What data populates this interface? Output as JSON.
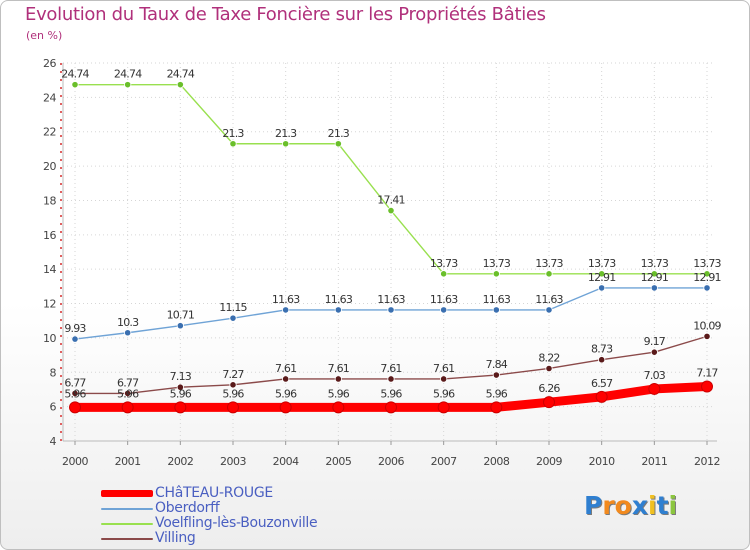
{
  "chart_data": {
    "type": "line",
    "title": "Evolution du Taux de Taxe Foncière sur les Propriétés Bâties",
    "ylabel": "(en %)",
    "xlabel": "",
    "x": [
      "2000",
      "2001",
      "2002",
      "2003",
      "2004",
      "2005",
      "2006",
      "2007",
      "2008",
      "2009",
      "2010",
      "2011",
      "2012"
    ],
    "ylim": [
      4,
      26
    ],
    "yticks": [
      4,
      6,
      8,
      10,
      12,
      14,
      16,
      18,
      20,
      22,
      24,
      26
    ],
    "grid": true,
    "series": [
      {
        "name": "CHâTEAU-ROUGE",
        "color": "#ff0000",
        "marker_color": "#ff0000",
        "values": [
          5.96,
          5.96,
          5.96,
          5.96,
          5.96,
          5.96,
          5.96,
          5.96,
          5.96,
          6.26,
          6.57,
          7.03,
          7.17
        ],
        "labels": [
          "5.96",
          "5.96",
          "5.96",
          "5.96",
          "5.96",
          "5.96",
          "5.96",
          "5.96",
          "5.96",
          "6.26",
          "6.57",
          "7.03",
          "7.17"
        ]
      },
      {
        "name": "Oberdorff",
        "color": "#6fa3d6",
        "marker_color": "#3a6fb0",
        "values": [
          9.93,
          10.3,
          10.71,
          11.15,
          11.63,
          11.63,
          11.63,
          11.63,
          11.63,
          11.63,
          12.91,
          12.91,
          12.91
        ],
        "labels": [
          "9.93",
          "10.3",
          "10.71",
          "11.15",
          "11.63",
          "11.63",
          "11.63",
          "11.63",
          "11.63",
          "11.63",
          "12.91",
          "12.91",
          "12.91"
        ]
      },
      {
        "name": "Voelfling-lès-Bouzonville",
        "color": "#99e04f",
        "marker_color": "#6abf2a",
        "values": [
          24.74,
          24.74,
          24.74,
          21.3,
          21.3,
          21.3,
          17.41,
          13.73,
          13.73,
          13.73,
          13.73,
          13.73,
          13.73
        ],
        "labels": [
          "24.74",
          "24.74",
          "24.74",
          "21.3",
          "21.3",
          "21.3",
          "17.41",
          "13.73",
          "13.73",
          "13.73",
          "13.73",
          "13.73",
          "13.73"
        ]
      },
      {
        "name": "Villing",
        "color": "#8b4a4a",
        "marker_color": "#5a1a1a",
        "values": [
          6.77,
          6.77,
          7.13,
          7.27,
          7.61,
          7.61,
          7.61,
          7.61,
          7.84,
          8.22,
          8.73,
          9.17,
          10.09
        ],
        "labels": [
          "6.77",
          "6.77",
          "7.13",
          "7.27",
          "7.61",
          "7.61",
          "7.61",
          "7.61",
          "7.84",
          "8.22",
          "8.73",
          "9.17",
          "10.09"
        ]
      }
    ]
  },
  "logo": {
    "letters": [
      "P",
      "r",
      "o",
      "x",
      "i",
      "t",
      "i"
    ],
    "colors": [
      "#2f7fd0",
      "#f28a1e",
      "#f28a1e",
      "#2f7fd0",
      "#f0c020",
      "#2f7fd0",
      "#8cc63f"
    ]
  }
}
